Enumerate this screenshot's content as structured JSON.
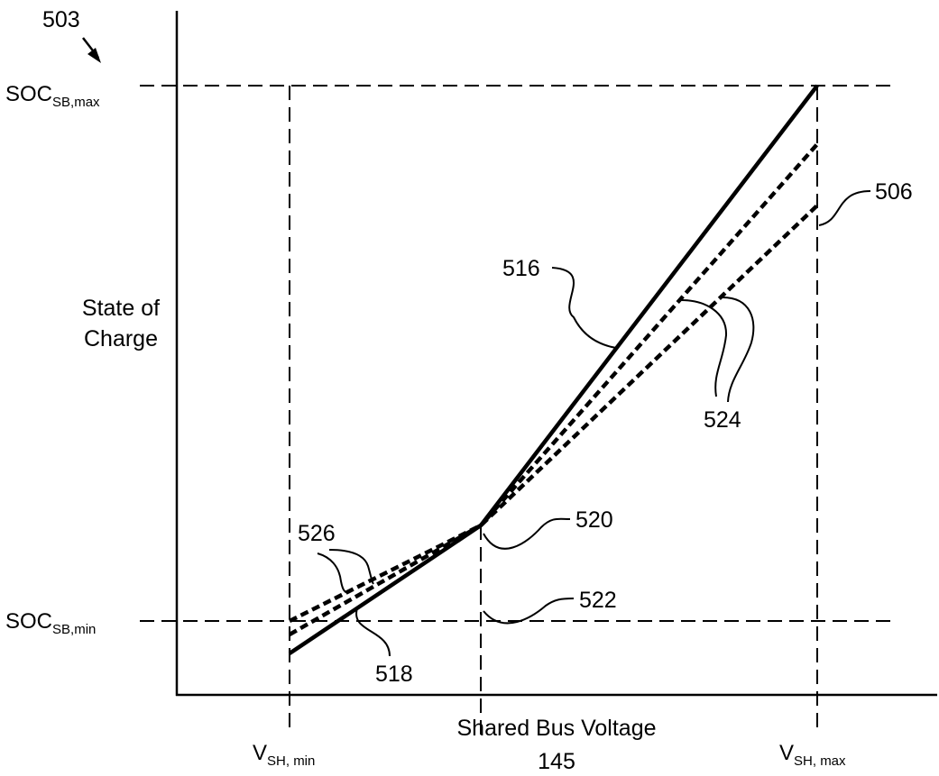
{
  "figure": {
    "figure_ref": "503",
    "y_axis_title": [
      "State of",
      "Charge"
    ],
    "x_axis_title": [
      "Shared Bus Voltage",
      "145"
    ],
    "y_ticks": [
      {
        "main": "SOC",
        "sub": "SB,max"
      },
      {
        "main": "SOC",
        "sub": "SB,min"
      }
    ],
    "x_ticks": [
      {
        "main": "V",
        "sub": "SH, min"
      },
      {
        "main": "V",
        "sub": "SH, max"
      }
    ],
    "callouts": {
      "c506": "506",
      "c516": "516",
      "c518": "518",
      "c520": "520",
      "c522": "522",
      "c524": "524",
      "c526": "526"
    }
  }
}
